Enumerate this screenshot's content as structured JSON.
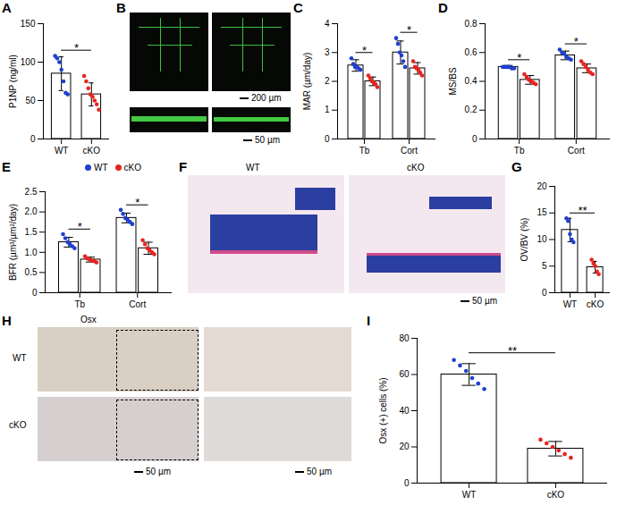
{
  "chart_data": [
    {
      "type": "bar",
      "title": "A",
      "y_label": "P1NP (ng/ml)",
      "categories": [
        "WT",
        "cKO"
      ],
      "values": [
        85,
        58
      ],
      "errors": [
        22,
        15
      ],
      "points": [
        [
          108,
          105,
          100,
          90,
          75,
          60,
          58
        ],
        [
          82,
          75,
          66,
          58,
          55,
          50,
          45,
          38
        ]
      ],
      "colors": [
        "#1f3fd1",
        "#e8231f"
      ],
      "ylim": [
        0,
        150
      ],
      "yticks": [
        0,
        50,
        100,
        150
      ],
      "annotations": [
        {
          "text": "*"
        }
      ]
    },
    {
      "type": "bar",
      "title": "C",
      "y_label": "MAR (µm/day)",
      "categories": [
        "Tb",
        "Cort"
      ],
      "series": [
        {
          "name": "WT",
          "color": "#1f3fd1",
          "values": [
            2.55,
            3.0
          ],
          "errors": [
            0.2,
            0.4
          ],
          "points": [
            [
              2.8,
              2.6,
              2.5,
              2.5,
              2.45,
              2.4
            ],
            [
              3.5,
              3.3,
              3.0,
              2.9,
              2.7,
              2.5
            ]
          ]
        },
        {
          "name": "cKO",
          "color": "#e8231f",
          "values": [
            2.0,
            2.45
          ],
          "errors": [
            0.15,
            0.2
          ],
          "points": [
            [
              2.2,
              2.1,
              2.0,
              1.95,
              1.9,
              1.8
            ],
            [
              2.7,
              2.5,
              2.45,
              2.4,
              2.3,
              2.2
            ]
          ]
        }
      ],
      "ylim": [
        0,
        4
      ],
      "yticks": [
        0,
        1,
        2,
        3,
        4
      ],
      "annotations": [
        {
          "text": "*",
          "category": "Tb"
        },
        {
          "text": "*",
          "category": "Cort"
        }
      ]
    },
    {
      "type": "bar",
      "title": "D",
      "y_label": "MS/BS",
      "categories": [
        "Tb",
        "Cort"
      ],
      "series": [
        {
          "name": "WT",
          "color": "#1f3fd1",
          "values": [
            0.5,
            0.58
          ],
          "errors": [
            0.01,
            0.03
          ],
          "points": [
            [
              0.5,
              0.5,
              0.5,
              0.5,
              0.49,
              0.49
            ],
            [
              0.62,
              0.6,
              0.59,
              0.57,
              0.56,
              0.55
            ]
          ]
        },
        {
          "name": "cKO",
          "color": "#e8231f",
          "values": [
            0.41,
            0.49
          ],
          "errors": [
            0.03,
            0.03
          ],
          "points": [
            [
              0.45,
              0.43,
              0.41,
              0.4,
              0.39,
              0.38
            ],
            [
              0.54,
              0.52,
              0.5,
              0.48,
              0.46,
              0.45
            ]
          ]
        }
      ],
      "ylim": [
        0,
        0.8
      ],
      "yticks": [
        0,
        0.2,
        0.4,
        0.6,
        0.8
      ],
      "annotations": [
        {
          "text": "*",
          "category": "Tb"
        },
        {
          "text": "*",
          "category": "Cort"
        }
      ]
    },
    {
      "type": "bar",
      "title": "E",
      "y_label": "BFR (µm³/µm²/day)",
      "categories": [
        "Tb",
        "Cort"
      ],
      "legend": "top",
      "series": [
        {
          "name": "WT",
          "color": "#1f3fd1",
          "values": [
            1.25,
            1.85
          ],
          "errors": [
            0.12,
            0.12
          ],
          "points": [
            [
              1.45,
              1.35,
              1.25,
              1.2,
              1.15,
              1.1
            ],
            [
              2.05,
              1.95,
              1.85,
              1.8,
              1.75,
              1.7
            ]
          ]
        },
        {
          "name": "cKO",
          "color": "#e8231f",
          "values": [
            0.82,
            1.1
          ],
          "errors": [
            0.06,
            0.15
          ],
          "points": [
            [
              0.9,
              0.85,
              0.82,
              0.8,
              0.78,
              0.75
            ],
            [
              1.3,
              1.2,
              1.1,
              1.05,
              1.0,
              0.95
            ]
          ]
        }
      ],
      "ylim": [
        0,
        2.5
      ],
      "yticks": [
        0,
        0.5,
        {
          "value": 1,
          "label": "1.0"
        },
        1.5,
        {
          "value": 2,
          "label": "2.0"
        },
        2.5
      ],
      "annotations": [
        {
          "text": "*",
          "category": "Tb"
        },
        {
          "text": "*",
          "category": "Cort"
        }
      ]
    },
    {
      "type": "bar",
      "title": "G",
      "y_label": "OV/BV (%)",
      "categories": [
        "WT",
        "cKO"
      ],
      "values": [
        11.8,
        4.8
      ],
      "errors": [
        2.2,
        1.1
      ],
      "points": [
        [
          14,
          13.5,
          11,
          10,
          9.5
        ],
        [
          6.2,
          5.5,
          5,
          4,
          3.5
        ]
      ],
      "colors": [
        "#1f3fd1",
        "#e8231f"
      ],
      "ylim": [
        0,
        20
      ],
      "yticks": [
        0,
        5,
        10,
        15,
        20
      ],
      "annotations": [
        {
          "text": "**"
        }
      ]
    },
    {
      "type": "bar",
      "title": "I",
      "y_label": "Osx (+) cells (%)",
      "categories": [
        "WT",
        "cKO"
      ],
      "values": [
        60,
        19
      ],
      "errors": [
        6,
        4
      ],
      "points": [
        [
          68,
          65,
          62,
          58,
          55,
          52
        ],
        [
          24,
          22,
          20,
          18,
          16,
          14
        ]
      ],
      "colors": [
        "#1f3fd1",
        "#e8231f"
      ],
      "ylim": [
        0,
        80
      ],
      "yticks": [
        0,
        20,
        40,
        60,
        80
      ],
      "annotations": [
        {
          "text": "**"
        }
      ]
    }
  ],
  "image_panels": [
    {
      "title": "B",
      "scale_bars": [
        "200 µm",
        "50 µm"
      ]
    },
    {
      "title": "F",
      "labels": [
        "WT",
        "cKO"
      ],
      "scale_bars": [
        "50 µm"
      ]
    },
    {
      "title": "H",
      "label": "Osx",
      "rows": [
        "WT",
        "cKO"
      ],
      "scale_bars": [
        "50 µm",
        "50 µm"
      ]
    }
  ]
}
